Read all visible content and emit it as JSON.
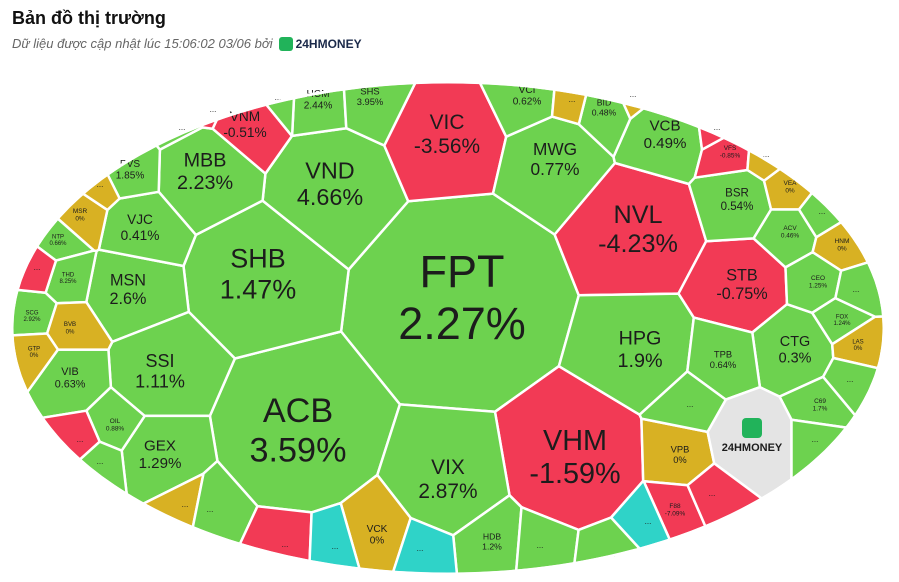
{
  "header": {
    "title": "Bản đồ thị trường",
    "subtitle": "Dữ liệu được cập nhật lúc 15:06:02 03/06 bởi",
    "brand": "24HMONEY"
  },
  "cells": [
    {
      "ticker": "FPT",
      "change": "2.27%",
      "color": "#6dd24f"
    },
    {
      "ticker": "ACB",
      "change": "3.59%",
      "color": "#6dd24f"
    },
    {
      "ticker": "VHM",
      "change": "-1.59%",
      "color": "#f23a55"
    },
    {
      "ticker": "SHB",
      "change": "1.47%",
      "color": "#6dd24f"
    },
    {
      "ticker": "VIX",
      "change": "2.87%",
      "color": "#6dd24f"
    },
    {
      "ticker": "VND",
      "change": "4.66%",
      "color": "#6dd24f"
    },
    {
      "ticker": "VIC",
      "change": "-3.56%",
      "color": "#f23a55"
    },
    {
      "ticker": "MBB",
      "change": "2.23%",
      "color": "#6dd24f"
    },
    {
      "ticker": "NVL",
      "change": "-4.23%",
      "color": "#f23a55"
    },
    {
      "ticker": "HPG",
      "change": "1.9%",
      "color": "#6dd24f"
    },
    {
      "ticker": "MSN",
      "change": "2.6%",
      "color": "#6dd24f"
    },
    {
      "ticker": "SSI",
      "change": "1.11%",
      "color": "#6dd24f"
    },
    {
      "ticker": "GEX",
      "change": "1.29%",
      "color": "#6dd24f"
    },
    {
      "ticker": "MWG",
      "change": "0.77%",
      "color": "#6dd24f"
    },
    {
      "ticker": "VCB",
      "change": "0.49%",
      "color": "#6dd24f"
    },
    {
      "ticker": "STB",
      "change": "-0.75%",
      "color": "#f23a55"
    },
    {
      "ticker": "CTG",
      "change": "0.3%",
      "color": "#6dd24f"
    },
    {
      "ticker": "BSR",
      "change": "0.54%",
      "color": "#6dd24f"
    },
    {
      "ticker": "TPB",
      "change": "0.64%",
      "color": "#6dd24f"
    },
    {
      "ticker": "VJC",
      "change": "0.41%",
      "color": "#6dd24f"
    },
    {
      "ticker": "VIB",
      "change": "0.63%",
      "color": "#6dd24f"
    },
    {
      "ticker": "PVS",
      "change": "1.85%",
      "color": "#6dd24f"
    },
    {
      "ticker": "VCI",
      "change": "0.62%",
      "color": "#6dd24f"
    },
    {
      "ticker": "BID",
      "change": "0.48%",
      "color": "#6dd24f"
    },
    {
      "ticker": "HCM",
      "change": "2.44%",
      "color": "#6dd24f"
    },
    {
      "ticker": "SHS",
      "change": "3.95%",
      "color": "#6dd24f"
    },
    {
      "ticker": "VNM",
      "change": "-0.51%",
      "color": "#f23a55"
    },
    {
      "ticker": "VPB",
      "change": "0%",
      "color": "#d8b123"
    },
    {
      "ticker": "VCK",
      "change": "0%",
      "color": "#d8b123"
    },
    {
      "ticker": "HDB",
      "change": "1.2%",
      "color": "#6dd24f"
    },
    {
      "ticker": "MSR",
      "change": "0%",
      "color": "#d8b123"
    },
    {
      "ticker": "NTP",
      "change": "0.66%",
      "color": "#6dd24f"
    },
    {
      "ticker": "THD",
      "change": "8.25%",
      "color": "#6dd24f"
    },
    {
      "ticker": "SCG",
      "change": "2.92%",
      "color": "#6dd24f"
    },
    {
      "ticker": "BVB",
      "change": "0%",
      "color": "#d8b123"
    },
    {
      "ticker": "GTP",
      "change": "0%",
      "color": "#d8b123"
    },
    {
      "ticker": "OIL",
      "change": "0.88%",
      "color": "#6dd24f"
    },
    {
      "ticker": "VFS",
      "change": "-0.85%",
      "color": "#f23a55"
    },
    {
      "ticker": "VEA",
      "change": "0%",
      "color": "#d8b123"
    },
    {
      "ticker": "ACV",
      "change": "0.46%",
      "color": "#6dd24f"
    },
    {
      "ticker": "HNM",
      "change": "0%",
      "color": "#d8b123"
    },
    {
      "ticker": "CEO",
      "change": "1.25%",
      "color": "#6dd24f"
    },
    {
      "ticker": "FOX",
      "change": "1.24%",
      "color": "#6dd24f"
    },
    {
      "ticker": "LAS",
      "change": "0%",
      "color": "#d8b123"
    },
    {
      "ticker": "C69",
      "change": "1.7%",
      "color": "#6dd24f"
    },
    {
      "ticker": "F88",
      "change": "-7.09%",
      "color": "#f23a55"
    },
    {
      "ticker": "24HMONEY",
      "color": "#e4e4e4"
    },
    {
      "ticker": "...",
      "color": "#d8b123"
    },
    {
      "ticker": "...",
      "color": "#f23a55"
    },
    {
      "ticker": "...",
      "color": "#f23a55"
    },
    {
      "ticker": "...",
      "color": "#6dd24f"
    },
    {
      "ticker": "...",
      "color": "#d8b123"
    },
    {
      "ticker": "...",
      "color": "#6dd24f"
    },
    {
      "ticker": "...",
      "color": "#f23a55"
    },
    {
      "ticker": "...",
      "color": "#2fd3c8"
    },
    {
      "ticker": "...",
      "color": "#2fd3c8"
    },
    {
      "ticker": "...",
      "color": "#6dd24f"
    },
    {
      "ticker": "...",
      "color": "#6dd24f"
    },
    {
      "ticker": "...",
      "color": "#2fd3c8"
    },
    {
      "ticker": "...",
      "color": "#f23a55"
    },
    {
      "ticker": "...",
      "color": "#6dd24f"
    },
    {
      "ticker": "...",
      "color": "#6dd24f"
    },
    {
      "ticker": "...",
      "color": "#6dd24f"
    },
    {
      "ticker": "...",
      "color": "#6dd24f"
    },
    {
      "ticker": "...",
      "color": "#6dd24f"
    },
    {
      "ticker": "...",
      "color": "#d8b123"
    },
    {
      "ticker": "...",
      "color": "#f23a55"
    },
    {
      "ticker": "...",
      "color": "#d8b123"
    },
    {
      "ticker": "...",
      "color": "#d8b123"
    },
    {
      "ticker": "...",
      "color": "#f23a55"
    },
    {
      "ticker": "...",
      "color": "#6dd24f"
    },
    {
      "ticker": "...",
      "color": "#6dd24f"
    }
  ]
}
